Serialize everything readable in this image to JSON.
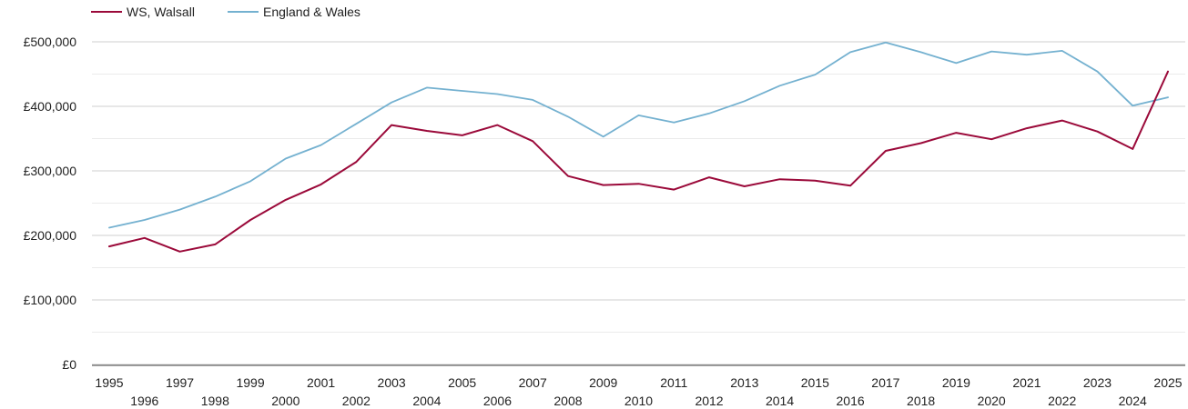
{
  "chart_data": {
    "type": "line",
    "title": "",
    "xlabel": "",
    "ylabel": "",
    "x": [
      1995,
      1996,
      1997,
      1998,
      1999,
      2000,
      2001,
      2002,
      2003,
      2004,
      2005,
      2006,
      2007,
      2008,
      2009,
      2010,
      2011,
      2012,
      2013,
      2014,
      2015,
      2016,
      2017,
      2018,
      2019,
      2020,
      2021,
      2022,
      2023,
      2024,
      2025
    ],
    "x_tick_labels": [
      "1995",
      "1996",
      "1997",
      "1998",
      "1999",
      "2000",
      "2001",
      "2002",
      "2003",
      "2004",
      "2005",
      "2006",
      "2007",
      "2008",
      "2009",
      "2010",
      "2011",
      "2012",
      "2013",
      "2014",
      "2015",
      "2016",
      "2017",
      "2018",
      "2019",
      "2020",
      "2021",
      "2022",
      "2023",
      "2024",
      "2025"
    ],
    "y_ticks": [
      0,
      100000,
      200000,
      300000,
      400000,
      500000
    ],
    "y_tick_labels": [
      "£0",
      "£100,000",
      "£200,000",
      "£300,000",
      "£400,000",
      "£500,000"
    ],
    "ylim": [
      0,
      500000
    ],
    "grid": true,
    "legend_position": "top-left",
    "series": [
      {
        "name": "WS, Walsall",
        "color": "#9b0a3a",
        "values": [
          183000,
          196000,
          175000,
          186000,
          224000,
          255000,
          279000,
          314000,
          371000,
          362000,
          355000,
          371000,
          346000,
          292000,
          278000,
          280000,
          271000,
          290000,
          276000,
          287000,
          285000,
          277000,
          331000,
          343000,
          359000,
          349000,
          366000,
          378000,
          361000,
          334000,
          454000
        ]
      },
      {
        "name": "England & Wales",
        "color": "#74b1d0",
        "values": [
          212000,
          224000,
          240000,
          260000,
          284000,
          319000,
          340000,
          373000,
          406000,
          429000,
          424000,
          419000,
          410000,
          384000,
          353000,
          386000,
          375000,
          389000,
          408000,
          432000,
          449000,
          484000,
          499000,
          484000,
          467000,
          485000,
          480000,
          486000,
          454000,
          401000,
          414000
        ]
      }
    ]
  }
}
